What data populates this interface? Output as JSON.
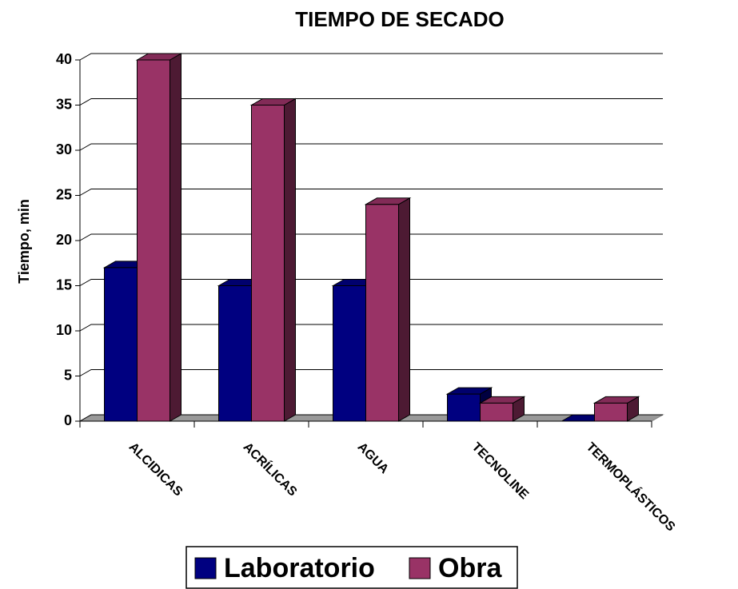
{
  "chart_data": {
    "type": "bar3d",
    "title": "TIEMPO DE SECADO",
    "y_label": "Tiempo, min",
    "categories": [
      "ALCIDICAS",
      "ACRÍLICAS",
      "AGUA",
      "TECNOLINE",
      "TERMOPLÁSTICOS"
    ],
    "series": [
      {
        "name": "Laboratorio",
        "color": "#000080",
        "values": [
          17,
          15,
          15,
          3,
          0
        ]
      },
      {
        "name": "Obra",
        "color": "#993366",
        "values": [
          40,
          35,
          24,
          2,
          2
        ]
      }
    ],
    "ylim": [
      0,
      40
    ],
    "yticks": [
      0,
      5,
      10,
      15,
      20,
      25,
      30,
      35,
      40
    ],
    "grid": true
  }
}
